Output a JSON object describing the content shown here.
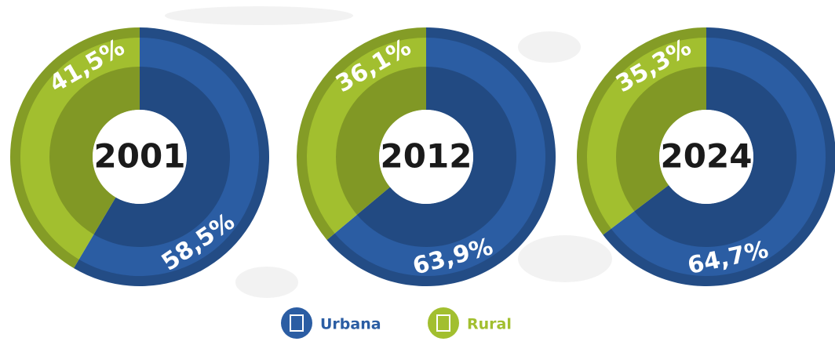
{
  "chart_data": [
    {
      "type": "donut",
      "title": "2001",
      "values": [
        58.5,
        41.5
      ],
      "value_labels": [
        "58,5%",
        "41,5%"
      ]
    },
    {
      "type": "donut",
      "title": "2012",
      "values": [
        63.9,
        36.1
      ],
      "value_labels": [
        "63,9%",
        "36,1%"
      ]
    },
    {
      "type": "donut",
      "title": "2024",
      "values": [
        64.7,
        35.3
      ],
      "value_labels": [
        "64,7%",
        "35,3%"
      ]
    }
  ],
  "legend": [
    {
      "name": "Urbana",
      "color": "#2b5da3"
    },
    {
      "name": "Rural",
      "color": "#a2bf2f"
    }
  ]
}
